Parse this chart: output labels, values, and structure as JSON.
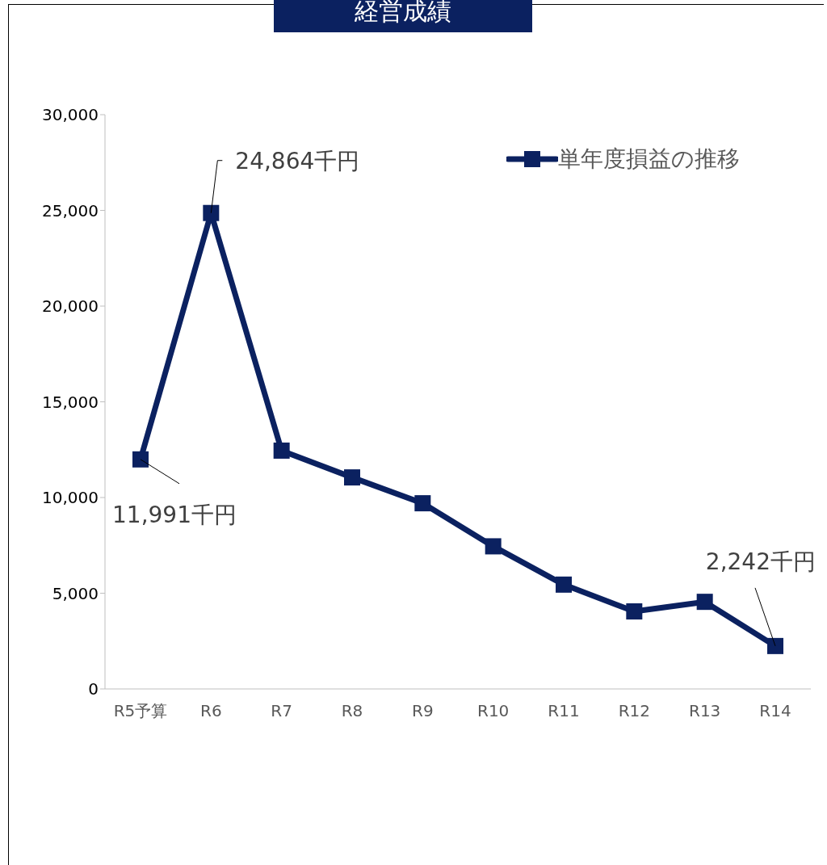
{
  "chart_data": {
    "type": "line",
    "title": "経営成績",
    "categories": [
      "R5予算",
      "R6",
      "R7",
      "R8",
      "R9",
      "R10",
      "R11",
      "R12",
      "R13",
      "R14"
    ],
    "series": [
      {
        "name": "単年度損益の推移",
        "color": "#0b2160",
        "values": [
          11991,
          24864,
          12450,
          11050,
          9700,
          7450,
          5450,
          4050,
          4550,
          2242
        ]
      }
    ],
    "ylim": [
      0,
      30000
    ],
    "yticks": [
      0,
      {
        "value": 5000,
        "label": "5,000"
      },
      {
        "value": 10000,
        "label": "10,000"
      },
      {
        "value": 15000,
        "label": "15,000"
      },
      {
        "value": 20000,
        "label": "20,000"
      },
      {
        "value": 25000,
        "label": "25,000"
      },
      {
        "value": 30000,
        "label": "30,000"
      }
    ],
    "grid": false,
    "legend": "top right",
    "marker": "square",
    "line_style": "solid",
    "annotations": [
      {
        "text": "11,991千円",
        "x": "R5予算",
        "y": 11991
      },
      {
        "text": "24,864千円",
        "x": "R6",
        "y": 24864
      },
      {
        "text": "2,242千円",
        "x": "R14",
        "y": 2242
      }
    ]
  }
}
